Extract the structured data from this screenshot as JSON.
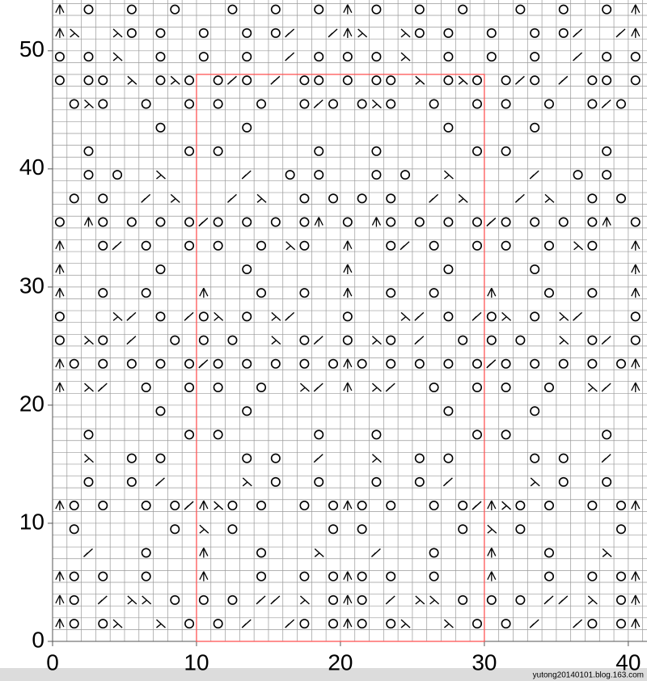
{
  "chart_data": {
    "type": "knitting-chart",
    "xlim": [
      0,
      41.3
    ],
    "ylim": [
      0,
      54.3
    ],
    "xticks": [
      0,
      10,
      20,
      30,
      40
    ],
    "yticks": [
      0,
      10,
      20,
      30,
      40,
      50
    ],
    "grid": true,
    "highlight": {
      "x": [
        10,
        30
      ],
      "y": [
        0,
        48
      ],
      "color": "#ff5555"
    },
    "row_y": [
      1,
      3,
      5,
      7,
      9,
      11,
      13,
      15,
      17,
      19,
      21,
      23,
      25,
      27,
      29,
      31,
      33,
      35,
      37,
      39,
      41,
      43,
      45,
      47,
      49,
      51,
      53
    ],
    "rows": [
      "co.or..r.o.o.l..lo.oco.or..r.o.o.l..lo.oc",
      "co.l.rr.o.o.o.ll.r.oco.l.rr.o.o.o.ll.r.oc",
      "co.o..o...c...o..o.oco.o..o...c...o..o.oc",
      "..l...o...c...o...r...l...o...c...o...r..",
      ".o......o.r.o......o.o......o.r.o......o.",
      "co.o..o.olcro.o..o.oco.o..o.olcro.o..o.oc",
      "..o..o.l.....r.o..o...o..o.l.....r.o..o..",
      "..r..o.o.....o.o..l...r..o.o.....o.o..l..",
      "..o......o.o......o...o......o.o......o..",
      ".......o.....o.............o.....o.......",
      "c.rl..o..o.o..o..rl.c.rl..o..o.o..o..rl.c",
      "co.o.o.o.olo.o.o.o.oco.o.o.o.olo.o.o.o.oc",
      "o.ro.l..o.o.o..r.ol.o.ro.l..o.o.o..r.ol.o",
      "o...rl.o.lor.o.rl...o...rl.o.lor.o.rl...o",
      "c..o..o...c...o..o..c..o..o...c...o..o..c",
      "c......o.....o......c......o.....o......c",
      "c..ol.o..o.o..o.ro..c..ol.o..o.o..o.ro..c",
      "o.co.o.o.olo.o.o.oc.o.co.o.o.olo.o.o.oc.o",
      ".o.o..l.r...l.r..o.o.o.o..l.r...l.r..o.o.",
      "..o.o..r.....l..o.o...o.o..r.....l..o.o..",
      "..o......o.o......o...o......o.o......o..",
      ".......o.....o.............o.....o.......",
      ".oro..o..o.o..o..olo.oro..o..o.o..o..olo.",
      "o.oo.r.oro.olo.l.oo.o.oo.r.oro.olo.l.oo.o",
      "o.o.r..o..o..o..l.o.o.o.r..o..o..o..l.o.o",
      "cr..ro.o..o..o.ol..lcr..ro.o..o..o.ol..lc",
      "c.o..o..o...o..o..o.c.o..o..o...o..o..o.c"
    ],
    "watermark": "yutong20140101.blog.163.com"
  }
}
